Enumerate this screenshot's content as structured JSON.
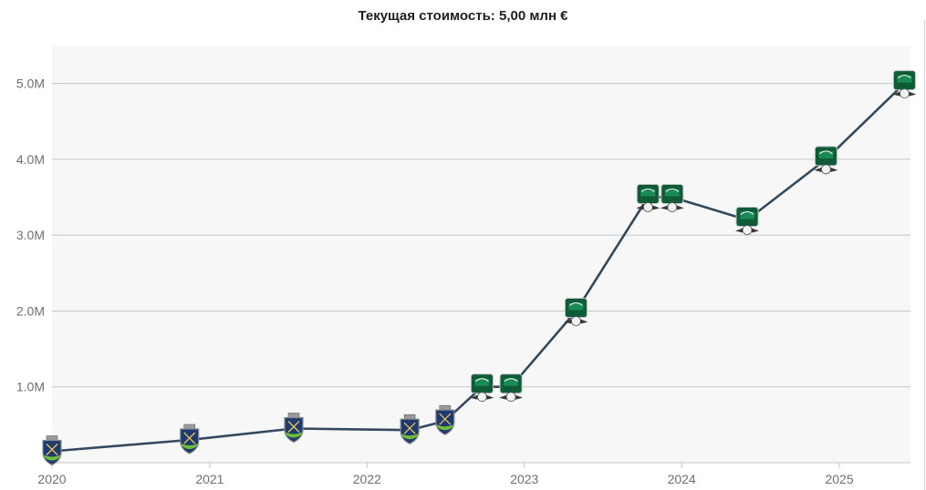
{
  "title": "Текущая стоимость: 5,00 млн €",
  "chart_data": {
    "type": "line",
    "title": "Текущая стоимость: 5,00 млн €",
    "xlabel": "",
    "ylabel": "",
    "x_ticks": [
      "2020",
      "2021",
      "2022",
      "2023",
      "2024",
      "2025"
    ],
    "y_ticks": [
      "1.0M",
      "2.0M",
      "3.0M",
      "4.0M",
      "5.0M"
    ],
    "xlim": [
      "2020-01-01",
      "2025-06-15"
    ],
    "ylim": [
      0,
      5.5
    ],
    "grid": true,
    "series": [
      {
        "color": "#34495e",
        "points": [
          {
            "x": "2020-01-01",
            "y": 0.15,
            "club": "blue-shield"
          },
          {
            "x": "2020-11-15",
            "y": 0.3,
            "club": "blue-shield"
          },
          {
            "x": "2021-07-15",
            "y": 0.45,
            "club": "blue-shield"
          },
          {
            "x": "2022-04-10",
            "y": 0.43,
            "club": "blue-shield"
          },
          {
            "x": "2022-07-01",
            "y": 0.55,
            "club": "blue-shield"
          },
          {
            "x": "2022-09-25",
            "y": 1.0,
            "club": "green-badge"
          },
          {
            "x": "2022-12-01",
            "y": 1.0,
            "club": "green-badge"
          },
          {
            "x": "2023-05-01",
            "y": 2.0,
            "club": "green-badge"
          },
          {
            "x": "2023-10-15",
            "y": 3.5,
            "club": "green-badge"
          },
          {
            "x": "2023-12-10",
            "y": 3.5,
            "club": "green-badge"
          },
          {
            "x": "2024-06-01",
            "y": 3.2,
            "club": "green-badge"
          },
          {
            "x": "2024-12-01",
            "y": 4.0,
            "club": "green-badge"
          },
          {
            "x": "2025-06-01",
            "y": 5.0,
            "club": "green-badge"
          }
        ]
      }
    ]
  }
}
